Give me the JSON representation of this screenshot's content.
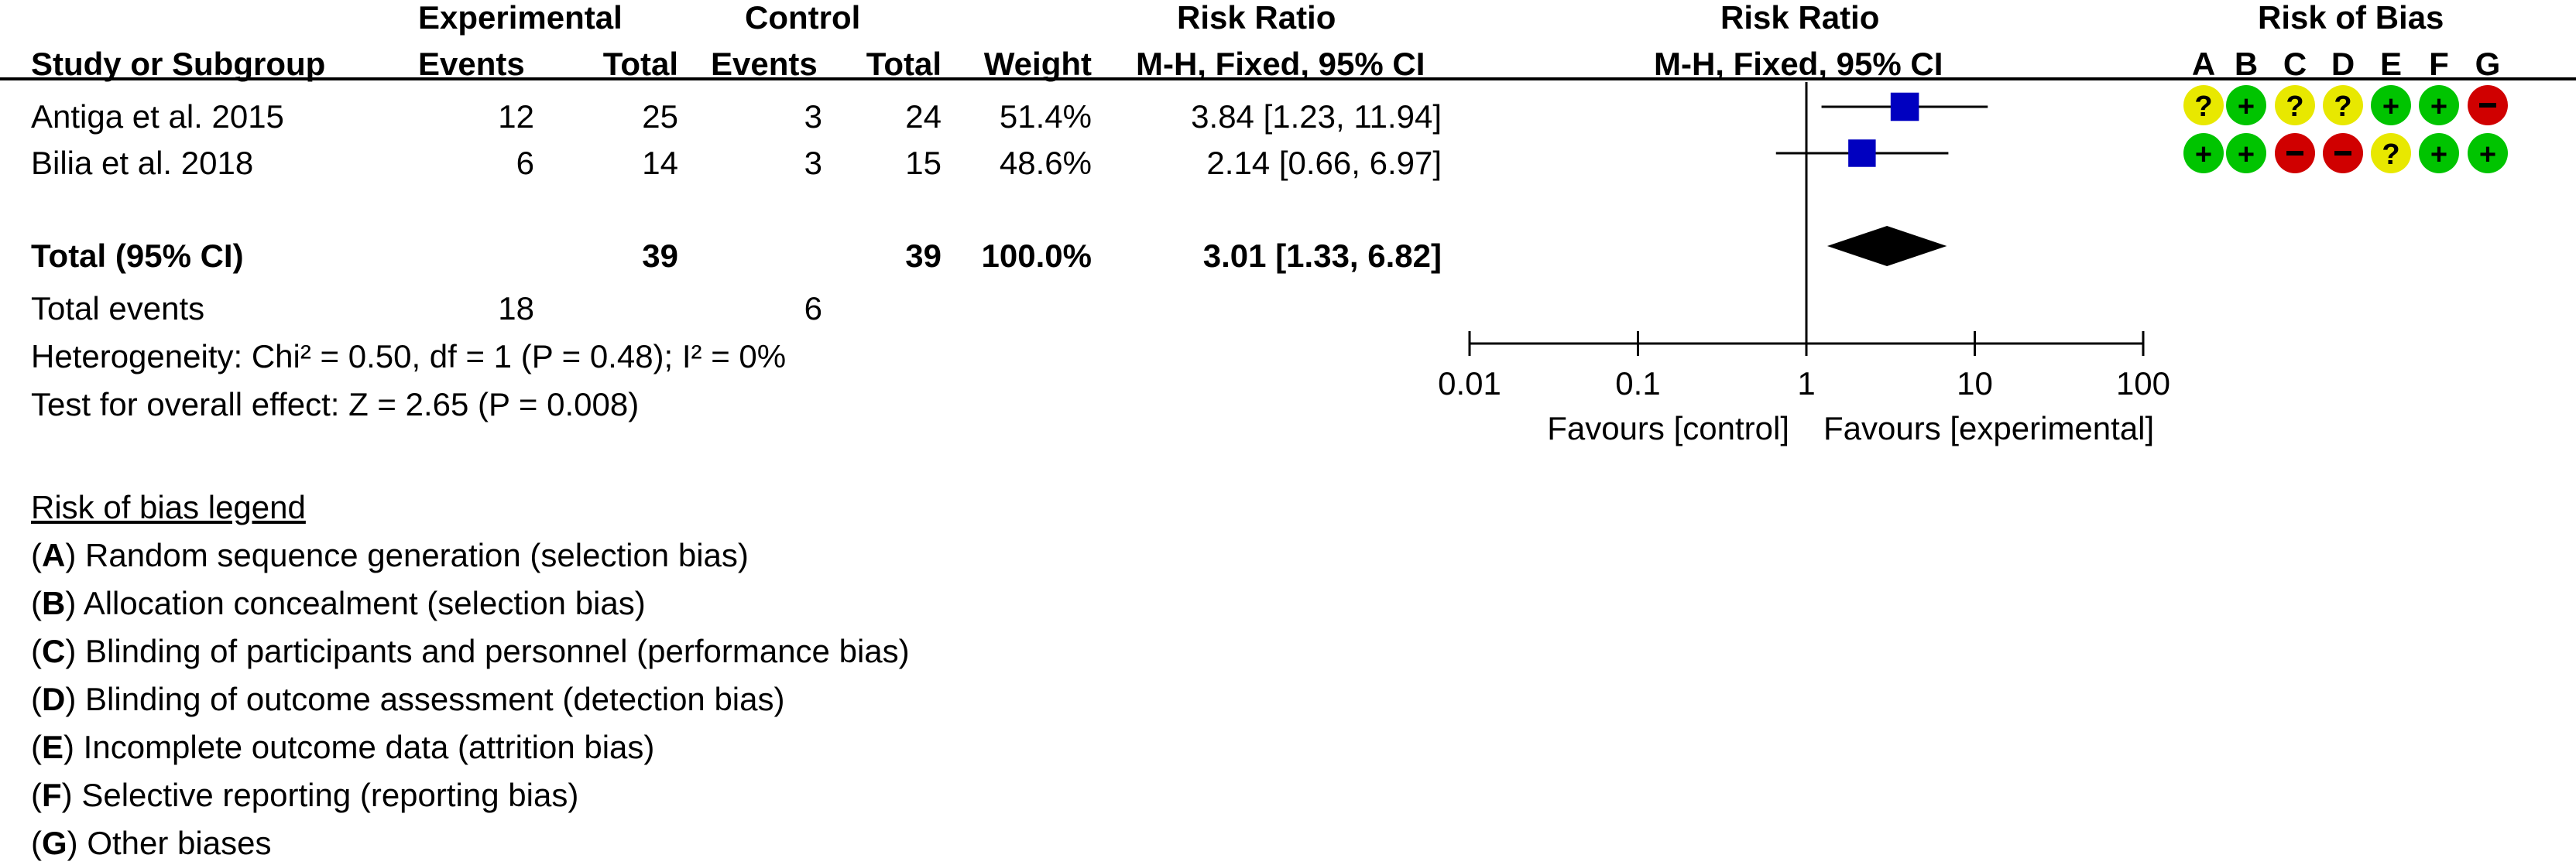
{
  "headers": {
    "experimental": "Experimental",
    "control": "Control",
    "risk_ratio_left": "Risk Ratio",
    "risk_ratio_right": "Risk Ratio",
    "risk_of_bias": "Risk of Bias",
    "study": "Study or Subgroup",
    "exp_events": "Events",
    "exp_total": "Total",
    "ctl_events": "Events",
    "ctl_total": "Total",
    "weight": "Weight",
    "method_left": "M-H, Fixed, 95% CI",
    "method_right": "M-H, Fixed, 95% CI",
    "bias_letters": [
      "A",
      "B",
      "C",
      "D",
      "E",
      "F",
      "G"
    ]
  },
  "studies": [
    {
      "name": "Antiga et al. 2015",
      "exp_events": "12",
      "exp_total": "25",
      "ctl_events": "3",
      "ctl_total": "24",
      "weight": "51.4%",
      "ci_text": "3.84 [1.23, 11.94]",
      "bias": [
        "?",
        "+",
        "?",
        "?",
        "+",
        "+",
        "−"
      ]
    },
    {
      "name": "Bilia et al. 2018",
      "exp_events": "6",
      "exp_total": "14",
      "ctl_events": "3",
      "ctl_total": "15",
      "weight": "48.6%",
      "ci_text": "2.14 [0.66, 6.97]",
      "bias": [
        "+",
        "+",
        "−",
        "−",
        "?",
        "+",
        "+"
      ]
    }
  ],
  "total": {
    "label": "Total (95% CI)",
    "exp_total": "39",
    "ctl_total": "39",
    "weight": "100.0%",
    "ci_text": "3.01 [1.33, 6.82]"
  },
  "total_events": {
    "label": "Total events",
    "exp": "18",
    "ctl": "6"
  },
  "heterogeneity": "Heterogeneity: Chi² = 0.50, df = 1 (P = 0.48); I² = 0%",
  "overall_effect": "Test for overall effect: Z = 2.65 (P = 0.008)",
  "axis": {
    "tick_labels": [
      "0.01",
      "0.1",
      "1",
      "10",
      "100"
    ],
    "favours_left": "Favours [control]",
    "favours_right": "Favours [experimental]"
  },
  "legend": {
    "title": "Risk of bias legend",
    "items": [
      {
        "letter": "A",
        "text": " Random sequence generation (selection bias)"
      },
      {
        "letter": "B",
        "text": " Allocation concealment (selection bias)"
      },
      {
        "letter": "C",
        "text": " Blinding of participants and personnel (performance bias)"
      },
      {
        "letter": "D",
        "text": " Blinding of outcome assessment (detection bias)"
      },
      {
        "letter": "E",
        "text": " Incomplete outcome data (attrition bias)"
      },
      {
        "letter": "F",
        "text": " Selective reporting (reporting bias)"
      },
      {
        "letter": "G",
        "text": " Other biases"
      }
    ]
  },
  "colors": {
    "marker": "#0000c0",
    "low_risk": "#00c400",
    "unclear_risk": "#e8e800",
    "high_risk": "#d00000"
  },
  "chart_data": {
    "type": "forest",
    "scale": "log",
    "xlim": [
      0.01,
      100
    ],
    "ticks": [
      0.01,
      0.1,
      1,
      10,
      100
    ],
    "null_line": 1,
    "studies": [
      {
        "name": "Antiga et al. 2015",
        "rr": 3.84,
        "lo": 1.23,
        "hi": 11.94,
        "weight": 51.4
      },
      {
        "name": "Bilia et al. 2018",
        "rr": 2.14,
        "lo": 0.66,
        "hi": 6.97,
        "weight": 48.6
      }
    ],
    "pooled": {
      "rr": 3.01,
      "lo": 1.33,
      "hi": 6.82
    }
  }
}
